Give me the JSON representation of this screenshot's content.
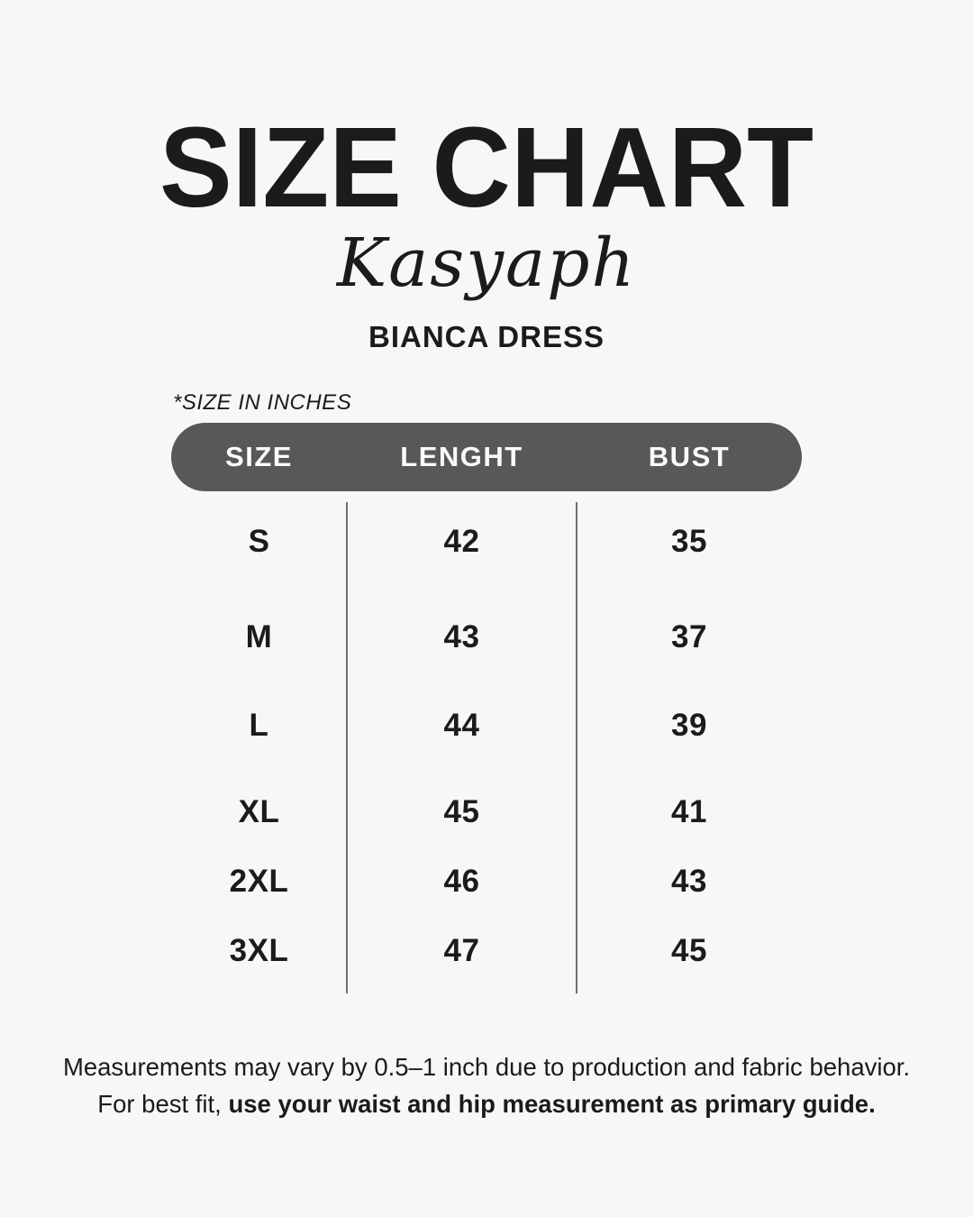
{
  "page": {
    "title": "SIZE CHART",
    "brand": "Kasyaph",
    "product": "BIANCA DRESS",
    "unit_note": "*SIZE IN INCHES"
  },
  "chart_data": {
    "type": "table",
    "columns": [
      "SIZE",
      "LENGHT",
      "BUST"
    ],
    "rows": [
      {
        "size": "S",
        "length": "42",
        "bust": "35"
      },
      {
        "size": "M",
        "length": "43",
        "bust": "37"
      },
      {
        "size": "L",
        "length": "44",
        "bust": "39"
      },
      {
        "size": "XL",
        "length": "45",
        "bust": "41"
      },
      {
        "size": "2XL",
        "length": "46",
        "bust": "43"
      },
      {
        "size": "3XL",
        "length": "47",
        "bust": "45"
      }
    ],
    "title": "SIZE CHART",
    "subtitle": "BIANCA DRESS",
    "unit": "inches"
  },
  "footer": {
    "line1": "Measurements may vary by 0.5–1 inch due to production and fabric behavior.",
    "line2_regular": "For best fit, ",
    "line2_bold": "use your waist and hip measurement as primary guide."
  },
  "colors": {
    "background": "#F7F7F6",
    "text": "#1B1B1B",
    "header_bar": "#58585A",
    "header_text": "#FAFAFA",
    "divider": "#6F6F6F"
  }
}
